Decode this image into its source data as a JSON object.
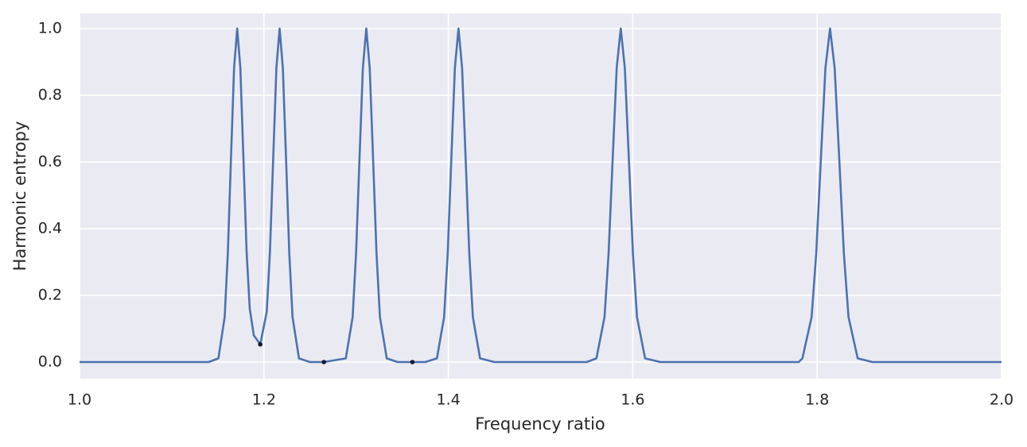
{
  "chart_data": {
    "type": "line",
    "xlabel": "Frequency ratio",
    "ylabel": "Harmonic entropy",
    "xlim": [
      1.0,
      2.0
    ],
    "ylim": [
      -0.05,
      1.045
    ],
    "xticks": [
      {
        "value": 1.0,
        "label": "1.0"
      },
      1.2,
      1.4,
      1.6,
      1.8,
      {
        "value": 2.0,
        "label": "2.0"
      }
    ],
    "yticks": [
      {
        "value": 0.0,
        "label": "0.0"
      },
      0.2,
      0.4,
      0.6,
      0.8,
      {
        "value": 1.0,
        "label": "1.0"
      }
    ],
    "grid": true,
    "background": "#eaeaf2",
    "line": {
      "color": "#4c72b0",
      "x": [
        1.0,
        1.14,
        1.1506,
        1.1574,
        1.1608,
        1.1642,
        1.1676,
        1.171,
        1.1744,
        1.1778,
        1.1812,
        1.1846,
        1.189,
        1.196,
        1.203,
        1.2065,
        1.21,
        1.2135,
        1.217,
        1.2205,
        1.224,
        1.2275,
        1.231,
        1.238,
        1.25,
        1.265,
        1.2888,
        1.2962,
        1.2999,
        1.3036,
        1.3073,
        1.311,
        1.3147,
        1.3184,
        1.3221,
        1.3258,
        1.3332,
        1.345,
        1.361,
        1.375,
        1.3876,
        1.3954,
        1.3993,
        1.4032,
        1.4071,
        1.411,
        1.4149,
        1.4188,
        1.4227,
        1.4266,
        1.4344,
        1.45,
        1.55,
        1.5606,
        1.5694,
        1.5738,
        1.5782,
        1.5826,
        1.587,
        1.5914,
        1.5958,
        1.6002,
        1.6046,
        1.6134,
        1.63,
        1.78,
        1.784,
        1.794,
        1.799,
        1.804,
        1.809,
        1.814,
        1.819,
        1.824,
        1.829,
        1.834,
        1.844,
        1.86,
        2.0
      ],
      "y": [
        0,
        0,
        0.011,
        0.135,
        0.325,
        0.607,
        0.882,
        1,
        0.882,
        0.607,
        0.33,
        0.16,
        0.08,
        0.053,
        0.15,
        0.33,
        0.607,
        0.882,
        1,
        0.882,
        0.607,
        0.325,
        0.135,
        0.011,
        0,
        0,
        0.011,
        0.135,
        0.325,
        0.607,
        0.882,
        1,
        0.882,
        0.607,
        0.325,
        0.135,
        0.011,
        0,
        0,
        0,
        0.011,
        0.135,
        0.325,
        0.607,
        0.882,
        1,
        0.882,
        0.607,
        0.325,
        0.135,
        0.011,
        0,
        0,
        0.011,
        0.135,
        0.325,
        0.607,
        0.882,
        1,
        0.882,
        0.607,
        0.325,
        0.135,
        0.011,
        0,
        0,
        0.011,
        0.135,
        0.325,
        0.607,
        0.882,
        1,
        0.882,
        0.607,
        0.325,
        0.135,
        0.011,
        0,
        0
      ]
    },
    "points": {
      "color": "#1a1a2e",
      "x": [
        1.196,
        1.265,
        1.361
      ],
      "y": [
        0.053,
        0,
        0
      ]
    }
  }
}
